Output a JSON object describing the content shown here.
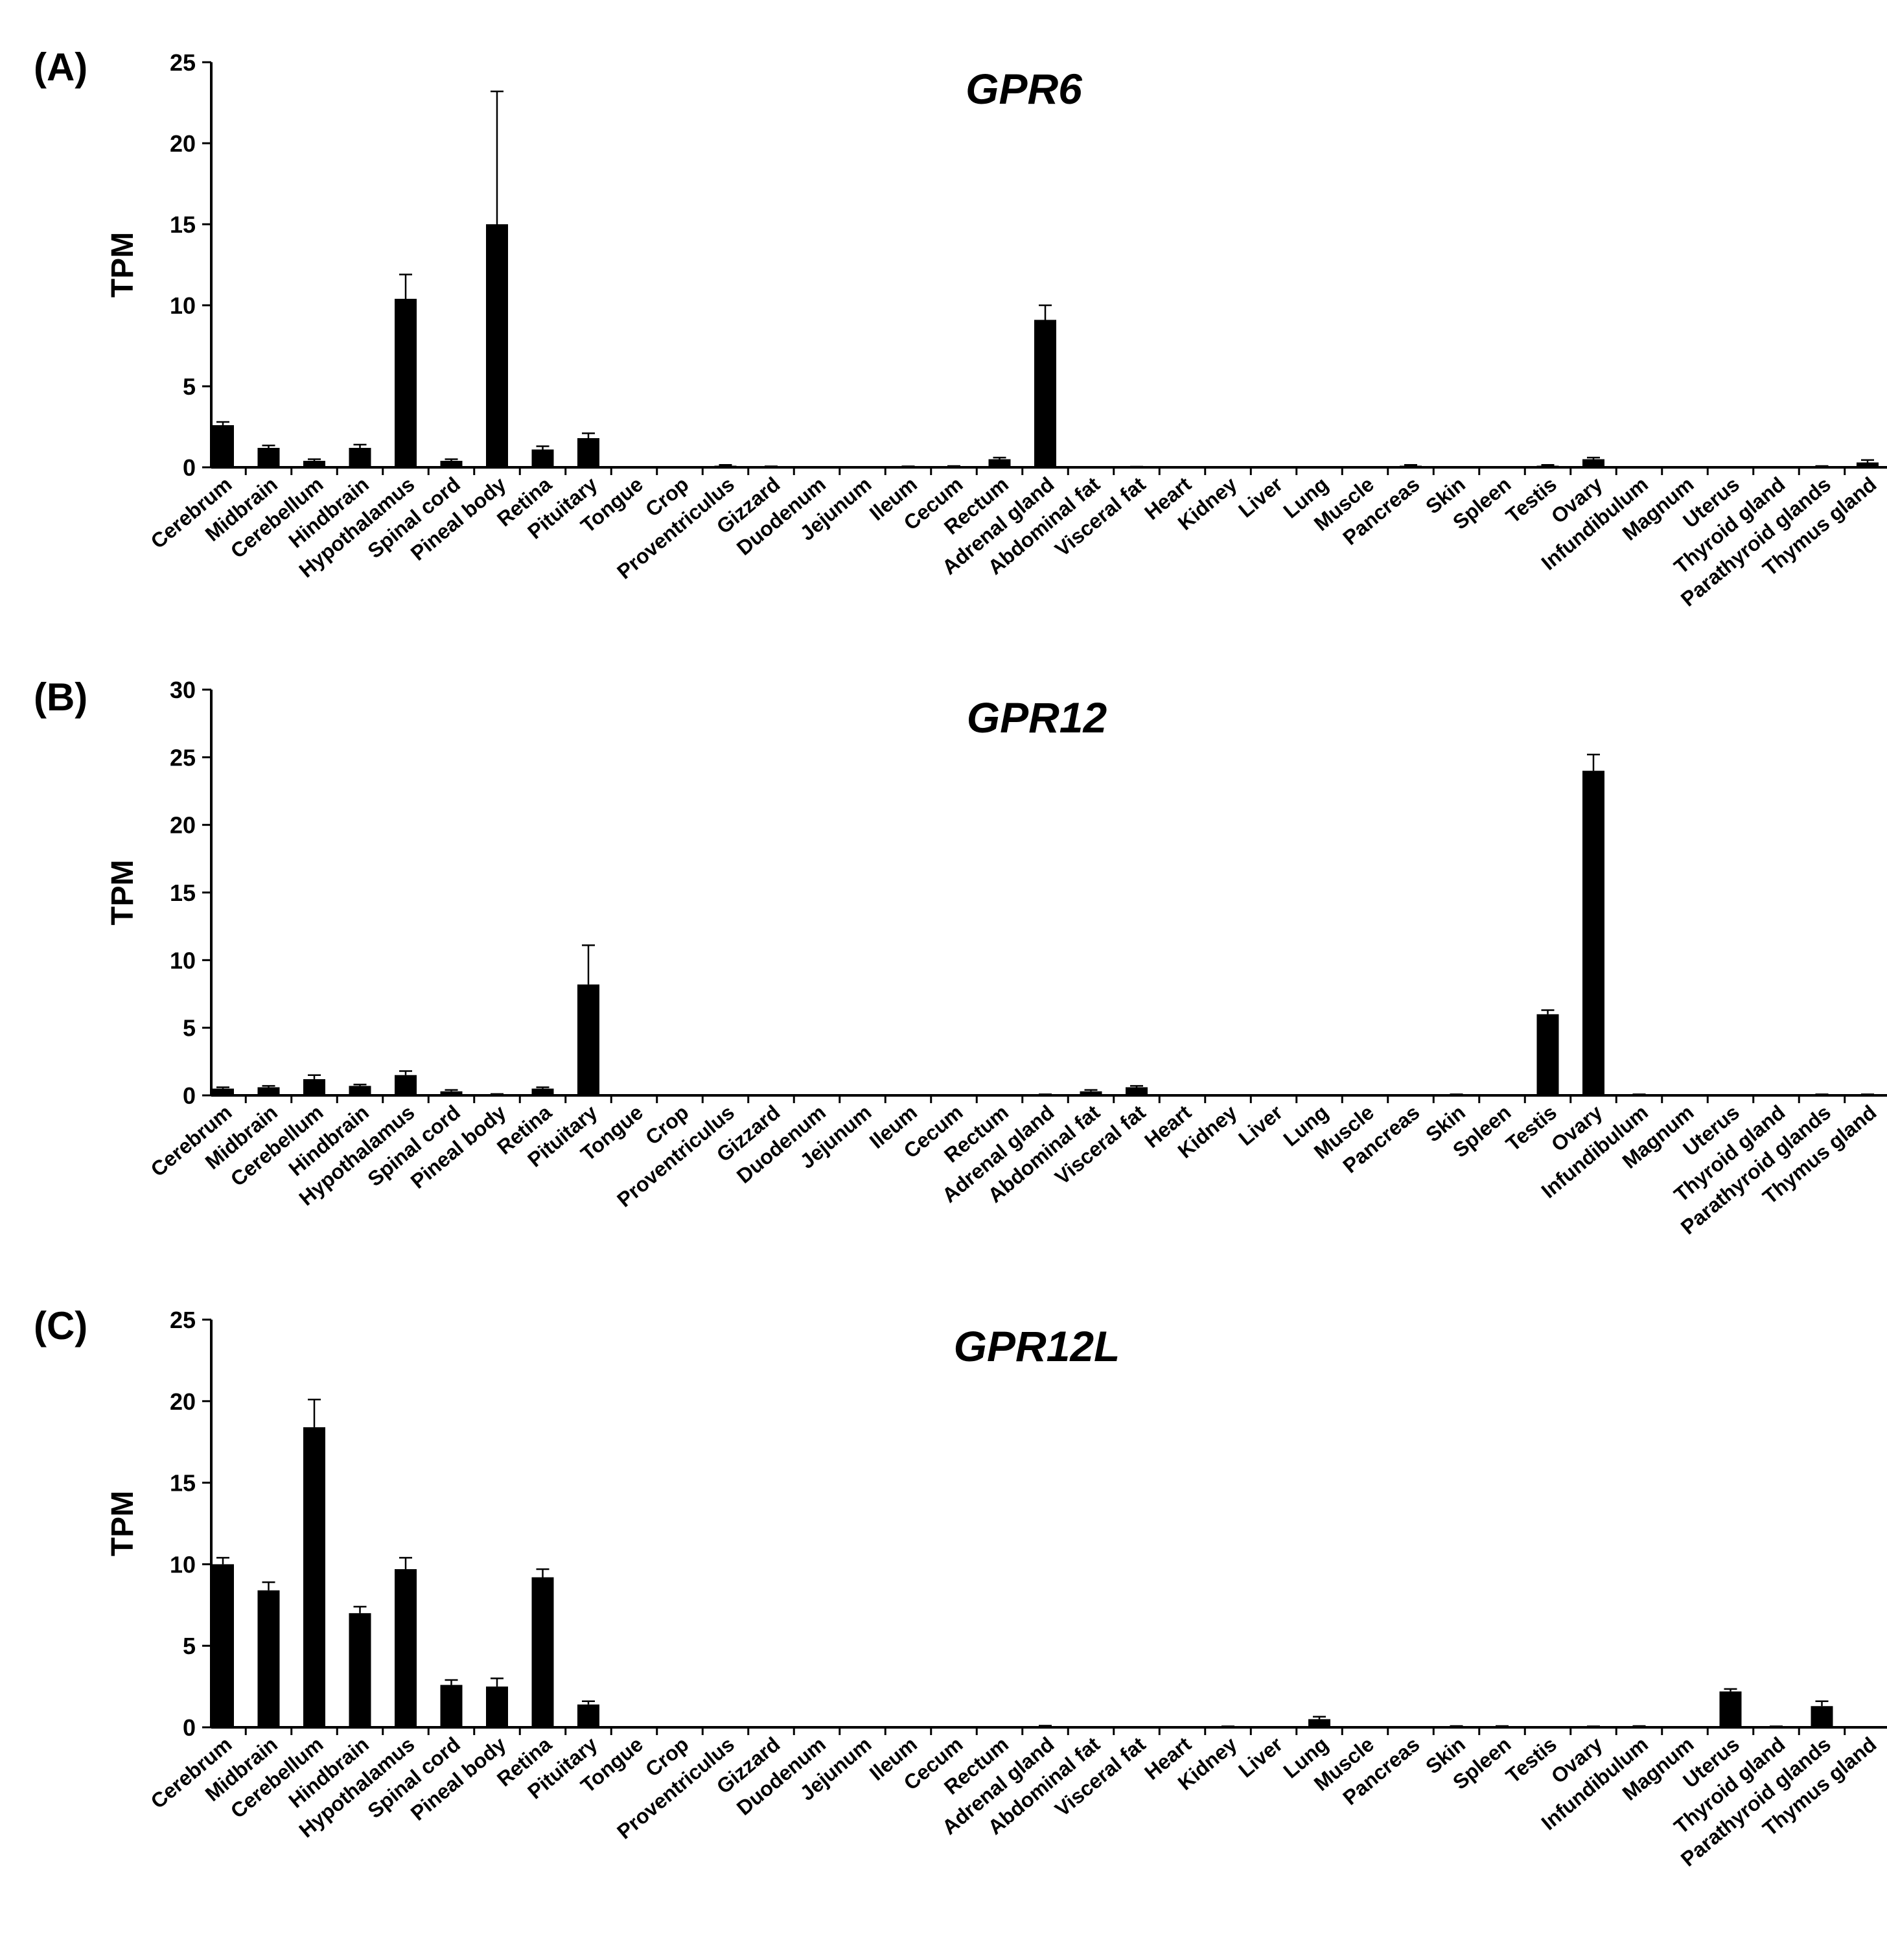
{
  "chart_data": [
    {
      "type": "bar",
      "panel_label": "(A)",
      "title": "GPR6",
      "xlabel": "",
      "ylabel": "TPM",
      "ylim": [
        0,
        25
      ],
      "yticks": [
        "0",
        "5",
        "10",
        "15",
        "20",
        "25"
      ],
      "categories": [
        "Cerebrum",
        "Midbrain",
        "Cerebellum",
        "Hindbrain",
        "Hypothalamus",
        "Spinal cord",
        "Pineal body",
        "Retina",
        "Pituitary",
        "Tongue",
        "Crop",
        "Proventriculus",
        "Gizzard",
        "Duodenum",
        "Jejunum",
        "Ileum",
        "Cecum",
        "Rectum",
        "Adrenal gland",
        "Abdominal fat",
        "Visceral fat",
        "Heart",
        "Kidney",
        "Liver",
        "Lung",
        "Muscle",
        "Pancreas",
        "Skin",
        "Spleen",
        "Testis",
        "Ovary",
        "Infundibulum",
        "Magnum",
        "Uterus",
        "Thyroid gland",
        "Parathyroid glands",
        "Thymus gland"
      ],
      "values": [
        2.6,
        1.2,
        0.4,
        1.2,
        10.4,
        0.4,
        15.0,
        1.1,
        1.8,
        0,
        0,
        0.1,
        0.03,
        0,
        0,
        0.03,
        0.05,
        0.5,
        9.1,
        0,
        0.02,
        0,
        0,
        0,
        0,
        0,
        0.1,
        0,
        0,
        0.1,
        0.5,
        0,
        0,
        0,
        0,
        0.05,
        0.3
      ],
      "errors": [
        0.2,
        0.15,
        0.1,
        0.2,
        1.5,
        0.1,
        8.2,
        0.2,
        0.3,
        0,
        0,
        0.05,
        0.03,
        0,
        0,
        0.03,
        0.03,
        0.1,
        0.9,
        0,
        0.02,
        0,
        0,
        0,
        0,
        0,
        0.05,
        0,
        0,
        0.05,
        0.1,
        0,
        0,
        0,
        0,
        0.03,
        0.15
      ]
    },
    {
      "type": "bar",
      "panel_label": "(B)",
      "title": "GPR12",
      "xlabel": "",
      "ylabel": "TPM",
      "ylim": [
        0,
        30
      ],
      "yticks": [
        "0",
        "5",
        "10",
        "15",
        "20",
        "25",
        "30"
      ],
      "categories": [
        "Cerebrum",
        "Midbrain",
        "Cerebellum",
        "Hindbrain",
        "Hypothalamus",
        "Spinal cord",
        "Pineal body",
        "Retina",
        "Pituitary",
        "Tongue",
        "Crop",
        "Proventriculus",
        "Gizzard",
        "Duodenum",
        "Jejunum",
        "Ileum",
        "Cecum",
        "Rectum",
        "Adrenal gland",
        "Abdominal fat",
        "Visceral fat",
        "Heart",
        "Kidney",
        "Liver",
        "Lung",
        "Muscle",
        "Pancreas",
        "Skin",
        "Spleen",
        "Testis",
        "Ovary",
        "Infundibulum",
        "Magnum",
        "Uterus",
        "Thyroid gland",
        "Parathyroid glands",
        "Thymus gland"
      ],
      "values": [
        0.5,
        0.6,
        1.2,
        0.7,
        1.5,
        0.3,
        0.05,
        0.5,
        8.2,
        0,
        0,
        0,
        0,
        0,
        0,
        0,
        0,
        0,
        0.05,
        0.3,
        0.6,
        0,
        0,
        0,
        0,
        0,
        0,
        0.05,
        0,
        6.0,
        24.0,
        0.05,
        0,
        0,
        0,
        0.05,
        0.05
      ],
      "errors": [
        0.1,
        0.1,
        0.3,
        0.1,
        0.3,
        0.1,
        0.05,
        0.1,
        2.9,
        0,
        0,
        0,
        0,
        0,
        0,
        0,
        0,
        0,
        0.03,
        0.1,
        0.1,
        0,
        0,
        0,
        0,
        0,
        0,
        0.03,
        0,
        0.3,
        1.2,
        0.03,
        0,
        0,
        0,
        0.03,
        0.03
      ]
    },
    {
      "type": "bar",
      "panel_label": "(C)",
      "title": "GPR12L",
      "xlabel": "",
      "ylabel": "TPM",
      "ylim": [
        0,
        25
      ],
      "yticks": [
        "0",
        "5",
        "10",
        "15",
        "20",
        "25"
      ],
      "categories": [
        "Cerebrum",
        "Midbrain",
        "Cerebellum",
        "Hindbrain",
        "Hypothalamus",
        "Spinal cord",
        "Pineal body",
        "Retina",
        "Pituitary",
        "Tongue",
        "Crop",
        "Proventriculus",
        "Gizzard",
        "Duodenum",
        "Jejunum",
        "Ileum",
        "Cecum",
        "Rectum",
        "Adrenal gland",
        "Abdominal fat",
        "Visceral fat",
        "Heart",
        "Kidney",
        "Liver",
        "Lung",
        "Muscle",
        "Pancreas",
        "Skin",
        "Spleen",
        "Testis",
        "Ovary",
        "Infundibulum",
        "Magnum",
        "Uterus",
        "Thyroid gland",
        "Parathyroid glands",
        "Thymus gland"
      ],
      "values": [
        10.0,
        8.4,
        18.4,
        7.0,
        9.7,
        2.6,
        2.5,
        9.2,
        1.4,
        0,
        0,
        0,
        0,
        0,
        0,
        0,
        0,
        0,
        0.05,
        0,
        0,
        0,
        0.03,
        0,
        0.5,
        0,
        0,
        0.05,
        0.05,
        0,
        0.03,
        0.05,
        0,
        2.2,
        0.03,
        1.3,
        0
      ],
      "errors": [
        0.4,
        0.5,
        1.7,
        0.4,
        0.7,
        0.3,
        0.5,
        0.5,
        0.2,
        0,
        0,
        0,
        0,
        0,
        0,
        0,
        0,
        0,
        0.05,
        0,
        0,
        0,
        0.03,
        0,
        0.15,
        0,
        0,
        0.03,
        0.03,
        0,
        0.03,
        0.03,
        0,
        0.15,
        0.03,
        0.3,
        0
      ]
    }
  ]
}
